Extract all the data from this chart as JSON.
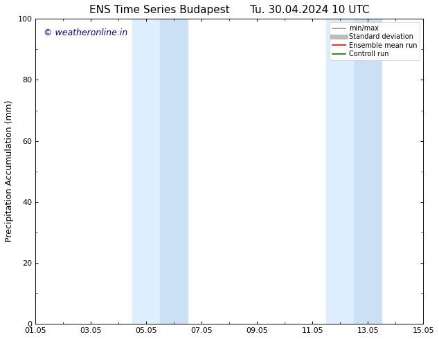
{
  "title": "ENS Time Series Budapest      Tu. 30.04.2024 10 UTC",
  "ylabel": "Precipitation Accumulation (mm)",
  "ylim": [
    0,
    100
  ],
  "yticks": [
    0,
    20,
    40,
    60,
    80,
    100
  ],
  "xtick_labels": [
    "01.05",
    "03.05",
    "05.05",
    "07.05",
    "09.05",
    "11.05",
    "13.05",
    "15.05"
  ],
  "shade_regions": [
    {
      "day_start": 3.5,
      "day_end": 4.5,
      "color": "#ddeeff"
    },
    {
      "day_start": 4.5,
      "day_end": 5.5,
      "color": "#cce0f5"
    },
    {
      "day_start": 10.5,
      "day_end": 11.5,
      "color": "#ddeeff"
    },
    {
      "day_start": 11.5,
      "day_end": 12.5,
      "color": "#cce0f5"
    }
  ],
  "watermark_text": "© weatheronline.in",
  "watermark_color": "#0000cc",
  "watermark_fontsize": 9,
  "legend_entries": [
    {
      "label": "min/max",
      "color": "#999999",
      "lw": 1.2,
      "style": "line"
    },
    {
      "label": "Standard deviation",
      "color": "#bbbbbb",
      "lw": 5,
      "style": "line"
    },
    {
      "label": "Ensemble mean run",
      "color": "#ff0000",
      "lw": 1.2,
      "style": "line"
    },
    {
      "label": "Controll run",
      "color": "#008000",
      "lw": 1.2,
      "style": "line"
    }
  ],
  "title_fontsize": 11,
  "axis_fontsize": 9,
  "tick_fontsize": 8,
  "background_color": "#ffffff",
  "plot_bg_color": "#ffffff",
  "xlim_days": [
    0,
    14
  ],
  "xtick_positions": [
    0,
    2,
    4,
    6,
    8,
    10,
    12,
    14
  ]
}
